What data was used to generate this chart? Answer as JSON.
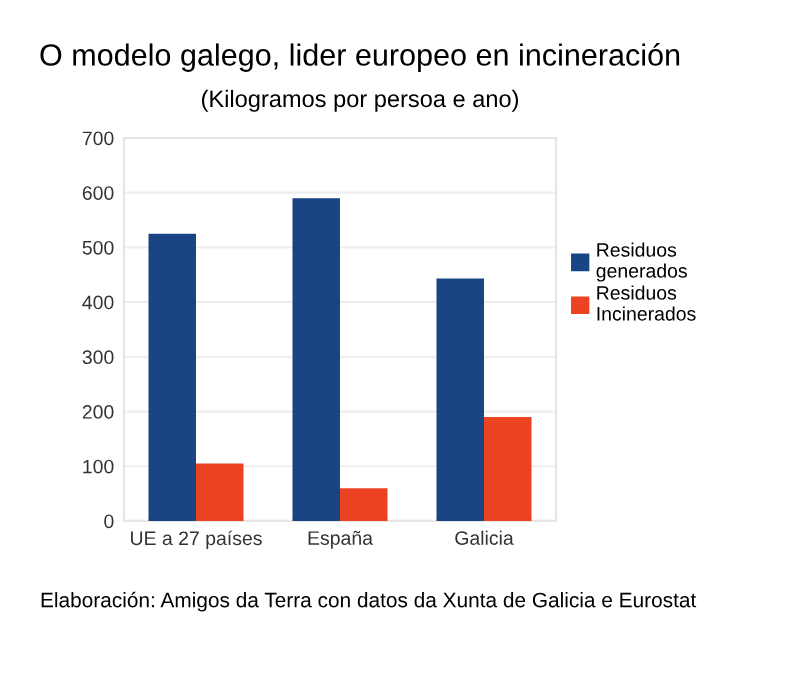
{
  "chart_data": {
    "type": "bar",
    "title": "O modelo galego, lider europeo en incineración",
    "subtitle": "(Kilogramos por persoa e ano)",
    "categories": [
      "UE a 27 países",
      "España",
      "Galicia"
    ],
    "series": [
      {
        "name": "Residuos generados",
        "color": "#1a4585",
        "values": [
          525,
          590,
          443
        ]
      },
      {
        "name": "Residuos Incinerados",
        "color": "#ec4323",
        "values": [
          105,
          60,
          190
        ]
      }
    ],
    "ylim": [
      0,
      700
    ],
    "yticks": [
      0,
      100,
      200,
      300,
      400,
      500,
      600,
      700
    ],
    "grid": "y",
    "legend": "right",
    "annotations": [
      "Elaboración: Amigos da Terra con datos da Xunta de Galicia e Eurostat"
    ]
  }
}
